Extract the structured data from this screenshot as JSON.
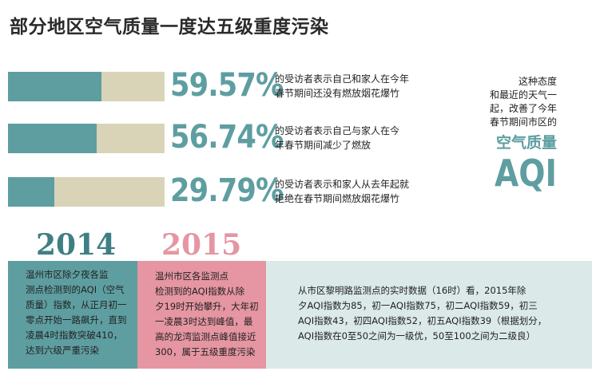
{
  "title": "部分地区空气质量一度达五级重度污染",
  "chart_data": {
    "type": "bar",
    "categories": [
      "的受访者表示自己和家人在今年春节期间还没有燃放烟花爆竹",
      "的受访者表示自己与家人在今年春节期间减少了燃放",
      "的受访者表示和家人从去年起就拒绝在春节期间燃放烟花爆竹"
    ],
    "values": [
      59.57,
      56.74,
      29.79
    ],
    "ylim": [
      0,
      100
    ],
    "colors": {
      "fill": "#5e9ea1",
      "track": "#d9d4b8"
    }
  },
  "rows": [
    {
      "pct": "59.57%",
      "line1": "的受访者表示自己和家人在今年",
      "line2": "春节期间还没有燃放烟花爆竹"
    },
    {
      "pct": "56.74%",
      "line1": "的受访者表示自己与家人在今",
      "line2": "年春节期间减少了燃放"
    },
    {
      "pct": "29.79%",
      "line1": "的受访者表示和家人从去年起就",
      "line2": "拒绝在春节期间燃放烟花爆竹"
    }
  ],
  "side_note": {
    "l1": "这种态度",
    "l2": "和最近的天气一",
    "l3": "起，改善了今年",
    "l4": "春节期间市区的",
    "big1": "空气质量",
    "big2": "AQI"
  },
  "panels": {
    "y2014": "2014",
    "y2015": "2015",
    "p2014": [
      "温州市区除夕夜各监",
      "测点检测到的AQI（空气",
      "质量）指数，从正月初一",
      "零点开始一路飙升，直到",
      "凌晨4时指数突破410，",
      "达到六级严重污染"
    ],
    "p2015": [
      "温州市区各监测点",
      "检测到的AQI指数从除",
      "夕19时开始攀升，大年初",
      "一凌晨3时达到峰值，最",
      "高的龙湾监测点峰值接近",
      "300，属于五级重度污染"
    ],
    "p_now": [
      "从市区黎明路监测点的实时数据（16时）看，2015年除",
      "夕AQI指数为85，初一AQI指数75，初二AQI指数59，初三",
      "AQI指数43，初四AQI指数52，初五AQI指数39（根据划分，",
      "AQI指数在0至50之间为一级优，50至100之间为二级良）"
    ]
  },
  "colors": {
    "teal": "#5e9ea1",
    "beige": "#d9d4b8",
    "pink": "#e596a2",
    "light": "#dbe9e9",
    "year2014": "#3e7f84",
    "year2015": "#e596a2"
  }
}
